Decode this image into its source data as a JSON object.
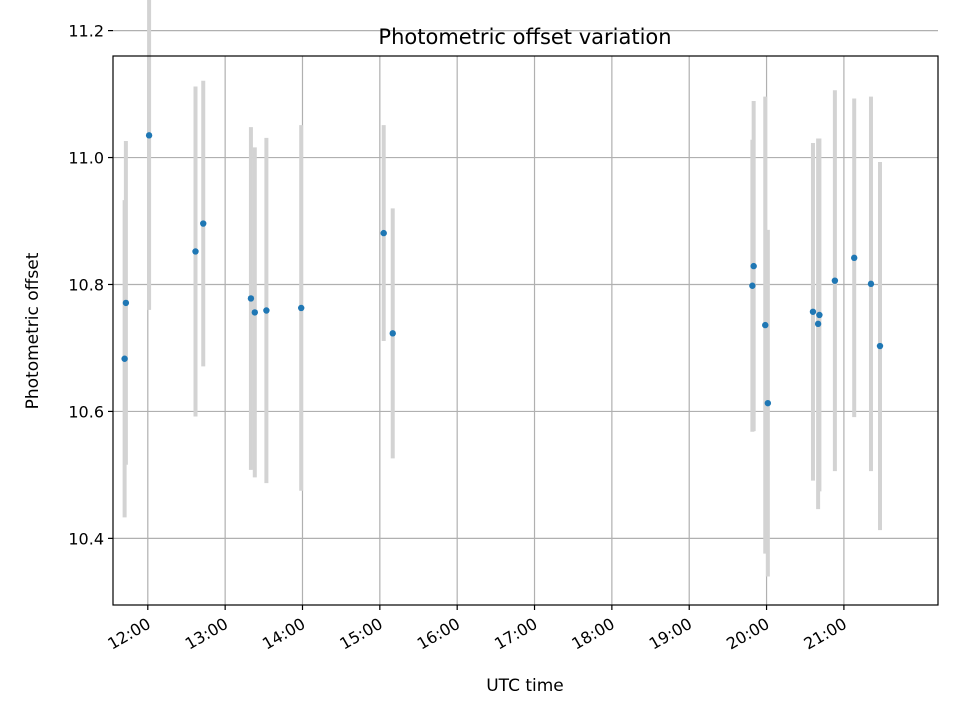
{
  "chart_data": {
    "type": "scatter",
    "title": "Photometric offset variation",
    "xlabel": "UTC time",
    "ylabel": "Photometric offset",
    "x_ticks": [
      "12:00",
      "13:00",
      "14:00",
      "15:00",
      "16:00",
      "17:00",
      "18:00",
      "19:00",
      "20:00",
      "21:00"
    ],
    "y_ticks": [
      "10.4",
      "10.6",
      "10.8",
      "11.0",
      "11.2"
    ],
    "xlim": [
      "11:33",
      "22:13"
    ],
    "ylim": [
      10.295,
      11.16
    ],
    "grid": true,
    "colors": {
      "points": "#1f77b4",
      "errorbars": "#d3d3d3",
      "grid": "#b0b0b0"
    },
    "points": [
      {
        "x": "11:42",
        "y": 10.683,
        "err": 0.25
      },
      {
        "x": "11:43",
        "y": 10.771,
        "err": 0.255
      },
      {
        "x": "12:01",
        "y": 11.035,
        "err": 0.275
      },
      {
        "x": "12:37",
        "y": 10.852,
        "err": 0.26
      },
      {
        "x": "12:43",
        "y": 10.896,
        "err": 0.225
      },
      {
        "x": "13:20",
        "y": 10.778,
        "err": 0.27
      },
      {
        "x": "13:23",
        "y": 10.756,
        "err": 0.26
      },
      {
        "x": "13:32",
        "y": 10.759,
        "err": 0.272
      },
      {
        "x": "13:59",
        "y": 10.763,
        "err": 0.288
      },
      {
        "x": "15:03",
        "y": 10.881,
        "err": 0.17
      },
      {
        "x": "15:10",
        "y": 10.723,
        "err": 0.197
      },
      {
        "x": "19:49",
        "y": 10.798,
        "err": 0.23
      },
      {
        "x": "19:50",
        "y": 10.829,
        "err": 0.26
      },
      {
        "x": "19:59",
        "y": 10.736,
        "err": 0.36
      },
      {
        "x": "20:01",
        "y": 10.613,
        "err": 0.273
      },
      {
        "x": "20:36",
        "y": 10.757,
        "err": 0.266
      },
      {
        "x": "20:40",
        "y": 10.738,
        "err": 0.292
      },
      {
        "x": "20:41",
        "y": 10.752,
        "err": 0.278
      },
      {
        "x": "20:53",
        "y": 10.806,
        "err": 0.3
      },
      {
        "x": "21:08",
        "y": 10.842,
        "err": 0.251
      },
      {
        "x": "21:21",
        "y": 10.801,
        "err": 0.295
      },
      {
        "x": "21:28",
        "y": 10.703,
        "err": 0.29
      }
    ]
  }
}
